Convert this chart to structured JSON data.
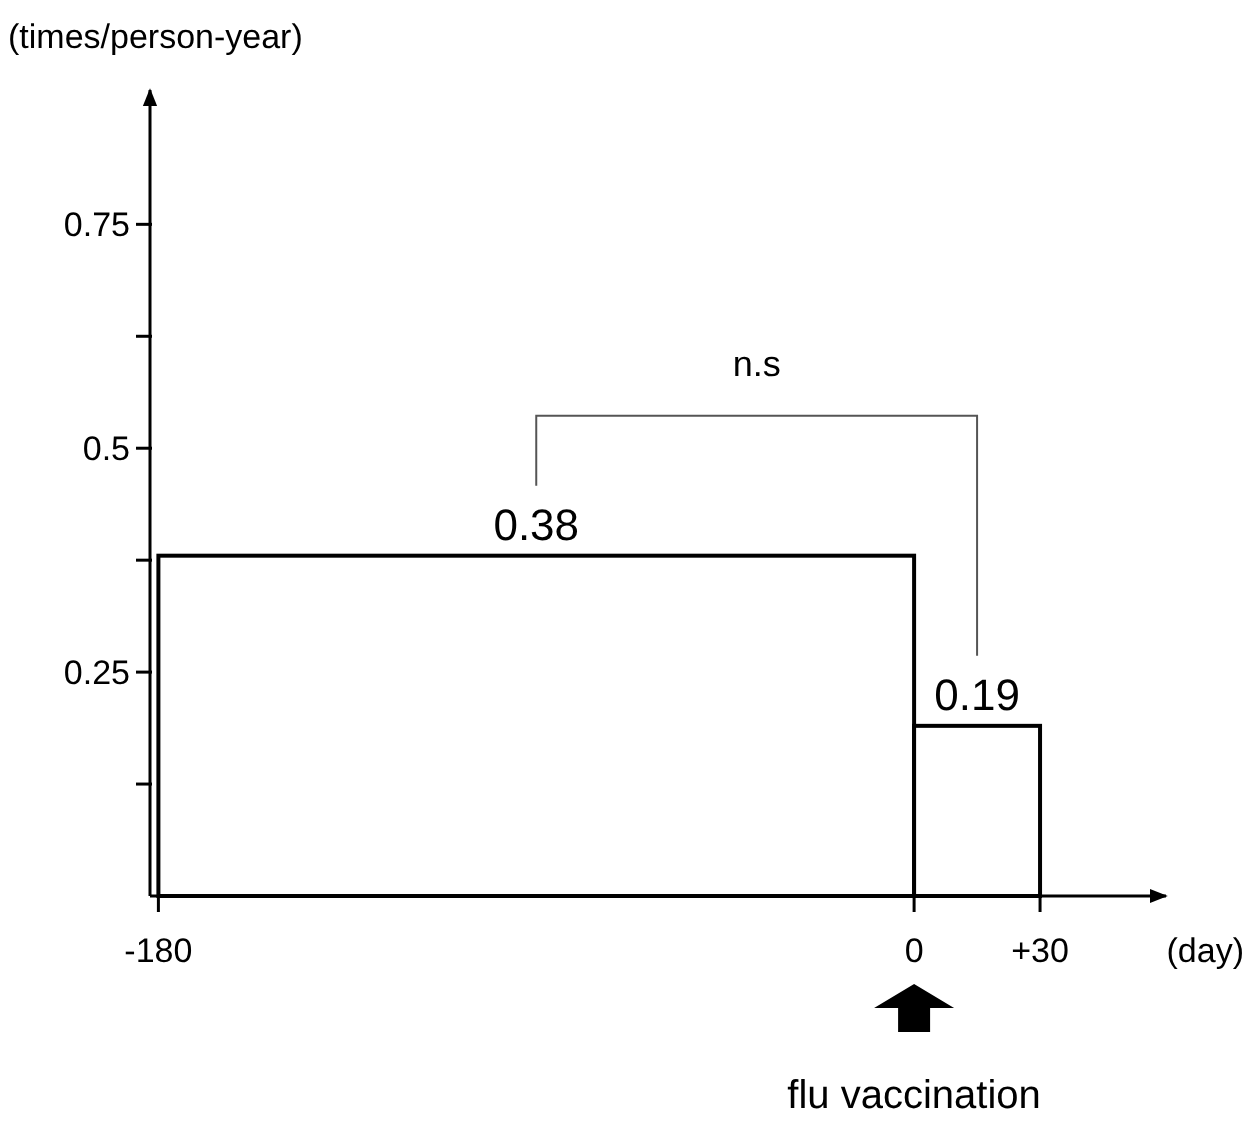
{
  "chart_data": {
    "type": "histogram",
    "xlabel": "(day)",
    "ylabel": "(times/person-year)",
    "bins": [
      -180,
      0,
      30
    ],
    "values": [
      0.38,
      0.19
    ],
    "color": "#ffffff",
    "xlim": [
      -182,
      60
    ],
    "xticks": [
      -180,
      0,
      {
        "value": 30,
        "label": "+30"
      }
    ],
    "ylim": [
      0,
      0.9
    ],
    "yticks": [
      {
        "value": 0.125,
        "label": null
      },
      0.25,
      {
        "value": 0.375,
        "label": null
      },
      0.5,
      {
        "value": 0.625,
        "label": null
      },
      0.75
    ],
    "data_labels": true,
    "grid": false,
    "annotations": [
      "n.s",
      "flu vaccination"
    ]
  }
}
